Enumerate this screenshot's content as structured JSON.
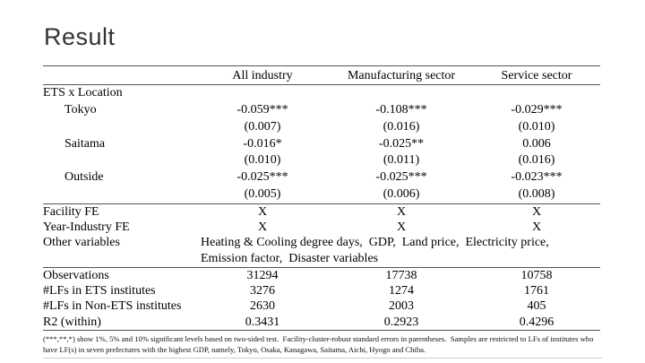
{
  "slide": {
    "title": "Result"
  },
  "table": {
    "columns": [
      "All industry",
      "Manufacturing sector",
      "Service sector"
    ],
    "section_label": "ETS x Location",
    "coef_rows": [
      {
        "label": "Tokyo",
        "coefs": [
          "-0.059***",
          "-0.108***",
          "-0.029***"
        ],
        "ses": [
          "(0.007)",
          "(0.016)",
          "(0.010)"
        ]
      },
      {
        "label": "Saitama",
        "coefs": [
          "-0.016*",
          "-0.025**",
          "0.006"
        ],
        "ses": [
          "(0.010)",
          "(0.011)",
          "(0.016)"
        ]
      },
      {
        "label": "Outside",
        "coefs": [
          "-0.025***",
          "-0.025***",
          "-0.023***"
        ],
        "ses": [
          "(0.005)",
          "(0.006)",
          "(0.008)"
        ]
      }
    ],
    "fe_rows": [
      {
        "label": "Facility FE",
        "values": [
          "X",
          "X",
          "X"
        ]
      },
      {
        "label": "Year-Industry FE",
        "values": [
          "X",
          "X",
          "X"
        ]
      }
    ],
    "other_variables": {
      "label": "Other variables",
      "value": "Heating & Cooling degree days,  GDP,  Land price,  Electricity price,  Emission factor,  Disaster variables"
    },
    "stat_rows": [
      {
        "label": "Observations",
        "values": [
          "31294",
          "17738",
          "10758"
        ]
      },
      {
        "label": "#LFs in ETS institutes",
        "values": [
          "3276",
          "1274",
          "1761"
        ]
      },
      {
        "label": "#LFs in Non-ETS institutes",
        "values": [
          "2630",
          "2003",
          "405"
        ]
      },
      {
        "label": "R2 (within)",
        "values": [
          "0.3431",
          "0.2923",
          "0.4296"
        ]
      }
    ]
  },
  "footnote": "(***,**,*) show 1%, 5% and 10% significant levels based on two-sided test.  Facility-cluster-robust standard errors in parentheses.  Samples are restricted to LFs of institutes who have LF(s) in seven prefectures with the highest GDP, namely, Tokyo, Osaka, Kanagawa, Saitama, Aichi, Hyogo and Chiba.",
  "colors": {
    "rule": "#555555",
    "faint_rule": "#cccccc",
    "text": "#000000",
    "title": "#333333",
    "background": "#ffffff"
  }
}
